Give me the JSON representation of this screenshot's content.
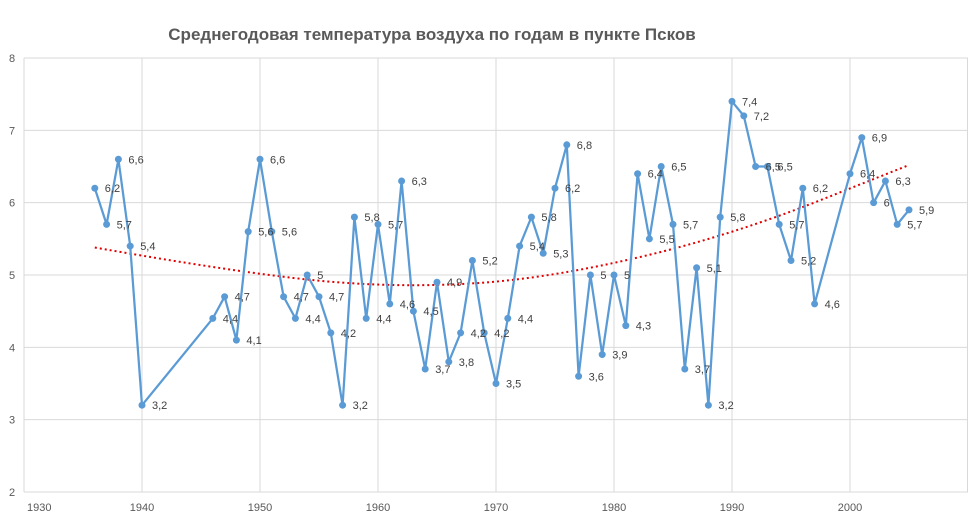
{
  "chart_data": {
    "type": "line",
    "title": "Среднегодовая  температура воздуха по годам в пункте Псков",
    "xlabel": "",
    "ylabel": "",
    "xlim": [
      1930,
      2010
    ],
    "ylim": [
      2,
      8
    ],
    "x_ticks": [
      "1930",
      "1940",
      "1950",
      "1960",
      "1970",
      "1980",
      "1990",
      "2000"
    ],
    "y_ticks": [
      "2",
      "3",
      "4",
      "5",
      "6",
      "7",
      "8"
    ],
    "grid": true,
    "legend": "none",
    "colors": {
      "line": "#5b9bd5",
      "trend": "#e00000",
      "grid": "#d9d9d9",
      "text": "#595959"
    },
    "series": [
      {
        "x": [
          1936,
          1937,
          1938,
          1939,
          1940,
          1946,
          1947,
          1948,
          1949,
          1950,
          1951,
          1952,
          1953,
          1954,
          1955,
          1956,
          1957,
          1958,
          1959,
          1960,
          1961,
          1962,
          1963,
          1964,
          1965,
          1966,
          1967,
          1968,
          1969,
          1970,
          1971,
          1972,
          1973,
          1974,
          1975,
          1976,
          1977,
          1978,
          1979,
          1980,
          1981,
          1982,
          1983,
          1984,
          1985,
          1986,
          1987,
          1988,
          1989,
          1990,
          1991,
          1992,
          1993,
          1994,
          1995,
          1996,
          1997,
          2000,
          2001,
          2002,
          2003,
          2004,
          2005
        ],
        "values": [
          6.2,
          5.7,
          6.6,
          5.4,
          3.2,
          4.4,
          4.7,
          4.1,
          5.6,
          6.6,
          5.6,
          4.7,
          4.4,
          5,
          4.7,
          4.2,
          3.2,
          5.8,
          4.4,
          5.7,
          4.6,
          6.3,
          4.5,
          3.7,
          4.9,
          3.8,
          4.2,
          5.2,
          4.2,
          3.5,
          4.4,
          5.4,
          5.8,
          5.3,
          6.2,
          6.8,
          3.6,
          5,
          3.9,
          5,
          4.3,
          6.4,
          5.5,
          6.5,
          5.7,
          3.7,
          5.1,
          3.2,
          5.8,
          7.4,
          7.2,
          6.5,
          6.5,
          5.7,
          5.2,
          6.2,
          4.6,
          6.4,
          6.9,
          6,
          6.3,
          5.7,
          5.9
        ],
        "labels": [
          "6,2",
          "5,7",
          "6,6",
          "5,4",
          "3,2",
          "4,4",
          "4,7",
          "4,1",
          "5,6",
          "6,6",
          "5,6",
          "4,7",
          "4,4",
          "5",
          "4,7",
          "4,2",
          "3,2",
          "5,8",
          "4,4",
          "5,7",
          "4,6",
          "6,3",
          "4,5",
          "3,7",
          "4,9",
          "3,8",
          "4,2",
          "5,2",
          "4,2",
          "3,5",
          "4,4",
          "5,4",
          "5,8",
          "5,3",
          "6,2",
          "6,8",
          "3,6",
          "5",
          "3,9",
          "5",
          "4,3",
          "6,4",
          "5,5",
          "6,5",
          "5,7",
          "3,7",
          "5,1",
          "3,2",
          "5,8",
          "7,4",
          "7,2",
          "6,5",
          "6,5",
          "5,7",
          "5,2",
          "6,2",
          "4,6",
          "6,4",
          "6,9",
          "6",
          "6,3",
          "5,7",
          "5,9"
        ]
      }
    ],
    "trendline": {
      "type": "polynomial",
      "x": [
        1936,
        1950,
        1963,
        1975,
        1990,
        2005
      ],
      "values": [
        5.38,
        4.98,
        4.82,
        4.97,
        5.55,
        6.52
      ]
    }
  }
}
